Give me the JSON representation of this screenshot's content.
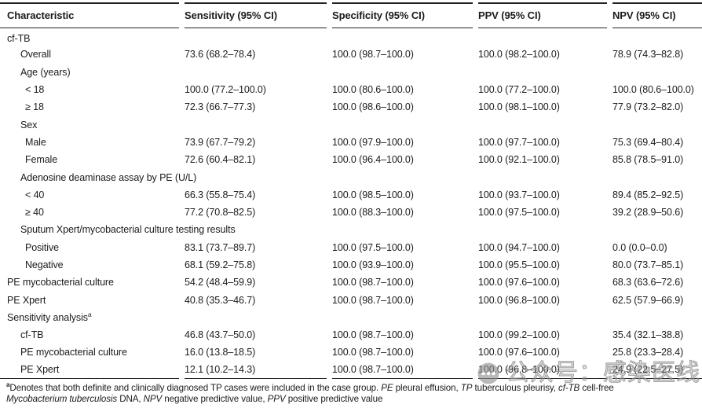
{
  "table": {
    "columns": [
      "Characteristic",
      "Sensitivity (95% CI)",
      "Specificity (95% CI)",
      "PPV (95% CI)",
      "NPV (95% CI)"
    ],
    "rows": [
      {
        "label": "cf-TB",
        "indent": 0,
        "values": [
          "",
          "",
          "",
          ""
        ]
      },
      {
        "label": "Overall",
        "indent": 1,
        "values": [
          "73.6 (68.2–78.4)",
          "100.0 (98.7–100.0)",
          "100.0 (98.2–100.0)",
          "78.9 (74.3–82.8)"
        ]
      },
      {
        "label": "Age (years)",
        "indent": 1,
        "values": [
          "",
          "",
          "",
          ""
        ]
      },
      {
        "label": "< 18",
        "indent": 2,
        "values": [
          "100.0 (77.2–100.0)",
          "100.0 (80.6–100.0)",
          "100.0 (77.2–100.0)",
          "100.0 (80.6–100.0)"
        ]
      },
      {
        "label": "≥ 18",
        "indent": 2,
        "values": [
          "72.3 (66.7–77.3)",
          "100.0 (98.6–100.0)",
          "100.0 (98.1–100.0)",
          "77.9 (73.2–82.0)"
        ]
      },
      {
        "label": "Sex",
        "indent": 1,
        "values": [
          "",
          "",
          "",
          ""
        ]
      },
      {
        "label": "Male",
        "indent": 2,
        "values": [
          "73.9 (67.7–79.2)",
          "100.0 (97.9–100.0)",
          "100.0 (97.7–100.0)",
          "75.3 (69.4–80.4)"
        ]
      },
      {
        "label": "Female",
        "indent": 2,
        "values": [
          "72.6 (60.4–82.1)",
          "100.0 (96.4–100.0)",
          "100.0 (92.1–100.0)",
          "85.8 (78.5–91.0)"
        ]
      },
      {
        "label": "Adenosine deaminase assay by PE (U/L)",
        "indent": 1,
        "values": [
          "",
          "",
          "",
          ""
        ]
      },
      {
        "label": "< 40",
        "indent": 2,
        "values": [
          "66.3 (55.8–75.4)",
          "100.0 (98.5–100.0)",
          "100.0 (93.7–100.0)",
          "89.4 (85.2–92.5)"
        ]
      },
      {
        "label": "≥ 40",
        "indent": 2,
        "values": [
          "77.2 (70.8–82.5)",
          "100.0 (88.3–100.0)",
          "100.0 (97.5–100.0)",
          "39.2 (28.9–50.6)"
        ]
      },
      {
        "label": "Sputum Xpert/mycobacterial culture testing results",
        "indent": 1,
        "values": [
          "",
          "",
          "",
          ""
        ]
      },
      {
        "label": "Positive",
        "indent": 2,
        "values": [
          "83.1 (73.7–89.7)",
          "100.0 (97.5–100.0)",
          "100.0 (94.7–100.0)",
          "0.0 (0.0–0.0)"
        ]
      },
      {
        "label": "Negative",
        "indent": 2,
        "values": [
          "68.1 (59.2–75.8)",
          "100.0 (93.9–100.0)",
          "100.0 (95.5–100.0)",
          "80.0 (73.7–85.1)"
        ]
      },
      {
        "label": "PE mycobacterial culture",
        "indent": 0,
        "values": [
          "54.2 (48.4–59.9)",
          "100.0 (98.7–100.0)",
          "100.0 (97.6–100.0)",
          "68.3 (63.6–72.6)"
        ]
      },
      {
        "label": "PE Xpert",
        "indent": 0,
        "values": [
          "40.8 (35.3–46.7)",
          "100.0 (98.7–100.0)",
          "100.0 (96.8–100.0)",
          "62.5 (57.9–66.9)"
        ]
      },
      {
        "label": "Sensitivity analysis",
        "sup": "a",
        "indent": 0,
        "values": [
          "",
          "",
          "",
          ""
        ]
      },
      {
        "label": "cf-TB",
        "indent": 1,
        "values": [
          "46.8 (43.7–50.0)",
          "100.0 (98.7–100.0)",
          "100.0 (99.2–100.0)",
          "35.4 (32.1–38.8)"
        ]
      },
      {
        "label": "PE mycobacterial culture",
        "indent": 1,
        "values": [
          "16.0 (13.8–18.5)",
          "100.0 (98.7–100.0)",
          "100.0 (97.6–100.0)",
          "25.8 (23.3–28.4)"
        ]
      },
      {
        "label": "PE Xpert",
        "indent": 1,
        "values": [
          "12.1 (10.2–14.3)",
          "100.0 (98.7–100.0)",
          "100.0 (96.8–100.0)",
          "24.9 (22.5–27.5)"
        ]
      }
    ]
  },
  "footnote": {
    "segments": [
      {
        "text": "a",
        "sup": true
      },
      {
        "text": "Denotes that both definite and clinically diagnosed TP cases were included in the case group. "
      },
      {
        "text": "PE",
        "italic": true
      },
      {
        "text": " pleural effusion, "
      },
      {
        "text": "TP",
        "italic": true
      },
      {
        "text": " tuberculous pleurisy, "
      },
      {
        "text": "cf-TB",
        "italic": true
      },
      {
        "text": " cell-free"
      },
      {
        "br": true
      },
      {
        "text": "Mycobacterium tuberculosis",
        "italic": true
      },
      {
        "text": " DNA, "
      },
      {
        "text": "NPV",
        "italic": true
      },
      {
        "text": " negative predictive value, "
      },
      {
        "text": "PPV",
        "italic": true
      },
      {
        "text": " positive predictive value"
      }
    ]
  },
  "watermark": {
    "text": "公众号：感染医线",
    "icon": "chat-dots-logo-icon",
    "color": "#a8a8a8"
  }
}
